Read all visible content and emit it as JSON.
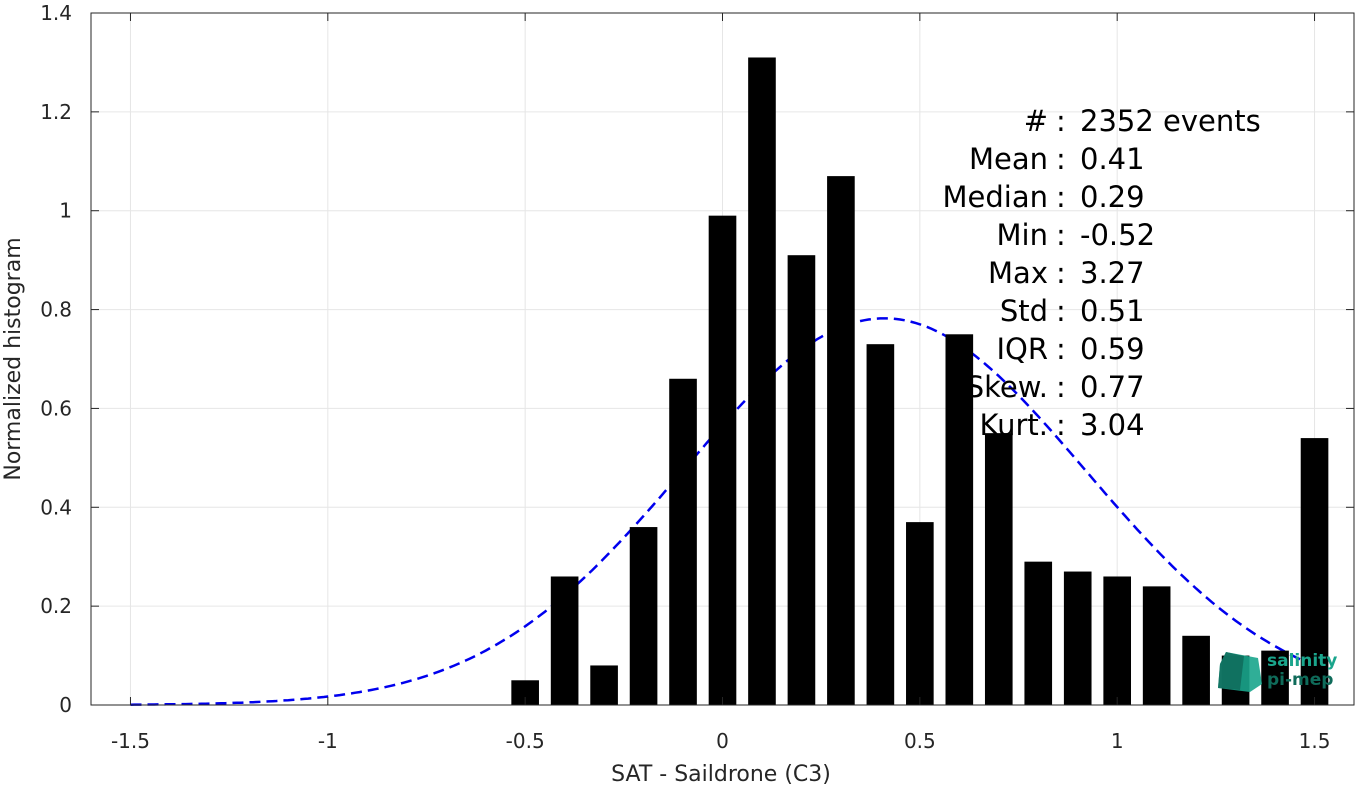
{
  "chart_data": {
    "type": "bar",
    "xlabel": "SAT - Saildrone (C3)",
    "ylabel": "Normalized histogram",
    "xlim": [
      -1.6,
      1.6
    ],
    "ylim": [
      0,
      1.4
    ],
    "grid": true,
    "xticks": [
      -1.5,
      -1,
      -0.5,
      0,
      0.5,
      1,
      1.5
    ],
    "xtick_labels": [
      "-1.5",
      "-1",
      "-0.5",
      "0",
      "0.5",
      "1",
      "1.5"
    ],
    "yticks": [
      0,
      0.2,
      0.4,
      0.6,
      0.8,
      1,
      1.2,
      1.4
    ],
    "ytick_labels": [
      "0",
      "0.2",
      "0.4",
      "0.6",
      "0.8",
      "1",
      "1.2",
      "1.4"
    ],
    "bar_width": 0.07,
    "bars": {
      "x": [
        -0.5,
        -0.4,
        -0.3,
        -0.2,
        -0.1,
        0.0,
        0.1,
        0.2,
        0.3,
        0.4,
        0.5,
        0.6,
        0.7,
        0.8,
        0.9,
        1.0,
        1.1,
        1.2,
        1.3,
        1.4,
        1.5
      ],
      "values": [
        0.05,
        0.26,
        0.08,
        0.36,
        0.66,
        0.99,
        1.31,
        0.91,
        1.07,
        0.73,
        0.37,
        0.75,
        0.55,
        0.29,
        0.27,
        0.26,
        0.24,
        0.14,
        0.1,
        0.11,
        0.54
      ],
      "color": "#000000"
    },
    "fit": {
      "style": "dashed",
      "color": "#0000ee",
      "mean": 0.41,
      "std": 0.51,
      "x_range": [
        -1.5,
        1.5
      ]
    },
    "stats": [
      {
        "label": "#",
        "separator": ":",
        "value": "2352 events"
      },
      {
        "label": "Mean",
        "separator": ":",
        "value": "0.41"
      },
      {
        "label": "Median",
        "separator": ":",
        "value": "0.29"
      },
      {
        "label": "Min",
        "separator": ":",
        "value": "-0.52"
      },
      {
        "label": "Max",
        "separator": ":",
        "value": "3.27"
      },
      {
        "label": "Std",
        "separator": ":",
        "value": "0.51"
      },
      {
        "label": "IQR",
        "separator": ":",
        "value": "0.59"
      },
      {
        "label": "Skew.",
        "separator": ":",
        "value": "0.77"
      },
      {
        "label": "Kurt.",
        "separator": ":",
        "value": "3.04"
      }
    ]
  },
  "logo": {
    "line1": "salinity",
    "line2": "pi-mep",
    "color_primary": "#1aa58c",
    "color_secondary": "#0f6b5a"
  }
}
